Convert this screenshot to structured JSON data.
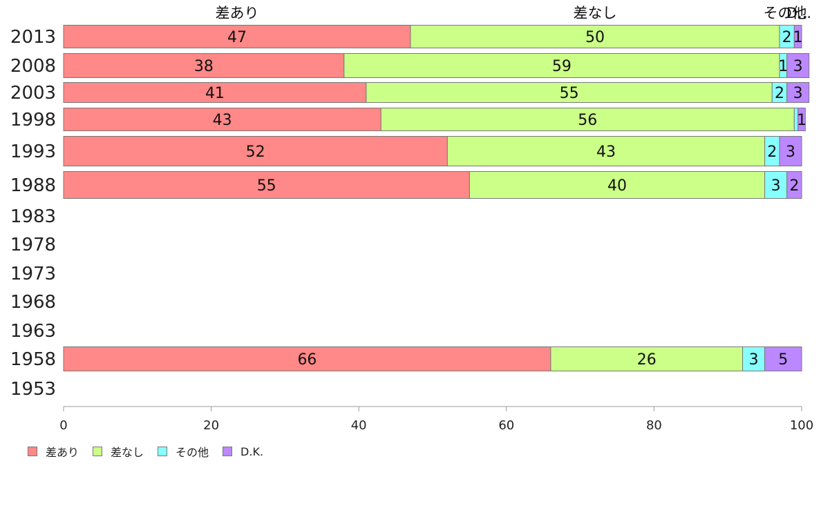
{
  "chart_data": {
    "type": "bar",
    "orientation": "horizontal",
    "stacked": true,
    "categories": [
      "2013",
      "2008",
      "2003",
      "1998",
      "1993",
      "1988",
      "1983",
      "1978",
      "1973",
      "1968",
      "1963",
      "1958",
      "1953"
    ],
    "series": [
      {
        "name": "差あり",
        "color": "#ff8888",
        "values": [
          47,
          38,
          41,
          43,
          52,
          55,
          null,
          null,
          null,
          null,
          null,
          66,
          null
        ]
      },
      {
        "name": "差なし",
        "color": "#ccff88",
        "values": [
          50,
          59,
          55,
          56,
          43,
          40,
          null,
          null,
          null,
          null,
          null,
          26,
          null
        ]
      },
      {
        "name": "その他",
        "color": "#88ffff",
        "values": [
          2,
          1,
          2,
          0.5,
          2,
          3,
          null,
          null,
          null,
          null,
          null,
          3,
          null
        ]
      },
      {
        "name": "D.K.",
        "color": "#bb88ff",
        "values": [
          1,
          3,
          3,
          1,
          3,
          2,
          null,
          null,
          null,
          null,
          null,
          5,
          null
        ]
      }
    ],
    "data_labels": [
      [
        "47",
        "50",
        "2",
        "1"
      ],
      [
        "38",
        "59",
        "1",
        "3"
      ],
      [
        "41",
        "55",
        "2",
        "3"
      ],
      [
        "43",
        "56",
        "",
        "1"
      ],
      [
        "52",
        "43",
        "2",
        "3"
      ],
      [
        "55",
        "40",
        "3",
        "2"
      ],
      [],
      [],
      [],
      [],
      [],
      [
        "66",
        "26",
        "3",
        "5"
      ],
      []
    ],
    "top_labels": [
      "差あり",
      "差なし",
      "その他",
      "D..."
    ],
    "xlim": [
      0,
      100
    ],
    "xticks": [
      0,
      20,
      40,
      60,
      80,
      100
    ],
    "grid": false,
    "legend": "bottom-left"
  }
}
